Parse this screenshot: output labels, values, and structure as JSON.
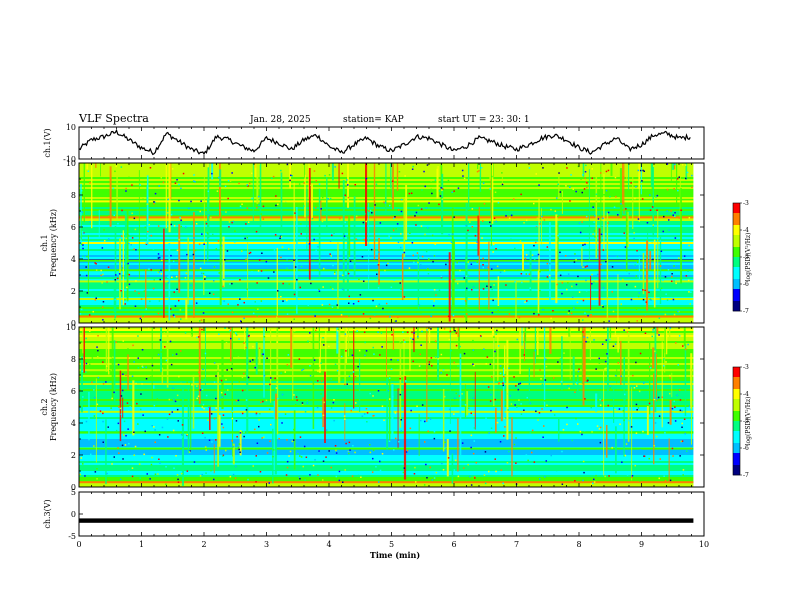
{
  "header": {
    "title": "VLF Spectra",
    "date": "Jan. 28, 2025",
    "station": "station= KAP",
    "start_time": "start  UT  =  23: 30: 1"
  },
  "chart_data": [
    {
      "type": "line",
      "panel": "ch1-waveform",
      "ylabel": "ch.1(V)",
      "ylim": [
        -10,
        10
      ],
      "yticks": [
        "10",
        "-10"
      ],
      "xlim": [
        0,
        10
      ],
      "series": [
        {
          "x": [
            0,
            0.2,
            0.4,
            0.6,
            0.8,
            1,
            1.2,
            1.4,
            1.6,
            1.8,
            2,
            2.2,
            2.4,
            2.6,
            2.8,
            3,
            3.2,
            3.4,
            3.6,
            3.8,
            4,
            4.2,
            4.4,
            4.6,
            4.8,
            5,
            5.2,
            5.4,
            5.6,
            5.8,
            6,
            6.2,
            6.4,
            6.6,
            6.8,
            7,
            7.2,
            7.4,
            7.6,
            7.8,
            8,
            8.2,
            8.4,
            8.6,
            8.8,
            9,
            9.2,
            9.4,
            9.6,
            9.8
          ],
          "y": [
            -4,
            2,
            4,
            7,
            2,
            -3,
            -6,
            6,
            1,
            -4,
            -7,
            4,
            2,
            -2,
            -5,
            3,
            0,
            -4,
            2,
            5,
            -2,
            -6,
            -1,
            3,
            -2,
            -5,
            -1,
            4,
            3,
            -1,
            -5,
            -2,
            3,
            1,
            -2,
            -4,
            -1,
            3,
            5,
            2,
            -3,
            -6,
            -1,
            3,
            -4,
            -1,
            5,
            6,
            3,
            4
          ]
        }
      ]
    },
    {
      "type": "heatmap",
      "panel": "ch1-spectrogram",
      "ylabel": [
        "ch.1",
        "Frequency (kHz)"
      ],
      "ylim": [
        0,
        10
      ],
      "yticks": [
        "0",
        "2",
        "4",
        "6",
        "8",
        "10"
      ],
      "xlim": [
        0,
        10
      ],
      "xmax_data": 9.83,
      "colorbar": {
        "label": "log(PSD)(V²/Hz)",
        "range": [
          -7,
          -3
        ],
        "ticks": [
          "-3",
          "-4",
          "-5",
          "-6",
          "-7"
        ]
      },
      "freq_profile_khz": [
        0,
        0.5,
        1,
        1.5,
        2,
        2.5,
        3,
        3.5,
        4,
        4.5,
        5,
        5.5,
        6,
        6.5,
        7,
        7.5,
        8,
        8.5,
        9,
        9.5,
        10
      ],
      "freq_profile_logpsd": [
        -4.2,
        -4.8,
        -5.2,
        -5.3,
        -5.4,
        -5.2,
        -5.8,
        -5.9,
        -6.0,
        -5.6,
        -5.6,
        -5.2,
        -5.4,
        -4.6,
        -5.2,
        -4.9,
        -4.6,
        -4.5,
        -4.5,
        -4.3,
        -4.2
      ],
      "line_features": [
        {
          "f_khz": 0.4,
          "level": -3.6
        },
        {
          "f_khz": 1.5,
          "level": -4.6
        },
        {
          "f_khz": 2.6,
          "level": -4.4
        },
        {
          "f_khz": 3.3,
          "level": -4.9
        },
        {
          "f_khz": 3.9,
          "level": -4.9
        },
        {
          "f_khz": 5.0,
          "level": -4.1
        },
        {
          "f_khz": 6.6,
          "level": -3.8
        },
        {
          "f_khz": 7.6,
          "level": -4.2
        }
      ]
    },
    {
      "type": "heatmap",
      "panel": "ch2-spectrogram",
      "ylabel": [
        "ch.2",
        "Frequency (kHz)"
      ],
      "ylim": [
        0,
        10
      ],
      "yticks": [
        "0",
        "2",
        "4",
        "6",
        "8",
        "10"
      ],
      "xlim": [
        0,
        10
      ],
      "xmax_data": 9.83,
      "colorbar": {
        "label": "log(PSD)(V²/Hz)",
        "range": [
          -7,
          -3
        ],
        "ticks": [
          "-3",
          "-4",
          "-5",
          "-6",
          "-7"
        ]
      },
      "freq_profile_khz": [
        0,
        0.5,
        1,
        1.5,
        2,
        2.5,
        3,
        3.5,
        4,
        4.5,
        5,
        5.5,
        6,
        6.5,
        7,
        7.5,
        8,
        8.5,
        9,
        9.5,
        10
      ],
      "freq_profile_logpsd": [
        -4.0,
        -5.0,
        -5.4,
        -5.6,
        -5.8,
        -5.8,
        -5.7,
        -5.5,
        -5.6,
        -5.3,
        -5.3,
        -5.2,
        -5.0,
        -4.8,
        -4.7,
        -4.7,
        -4.6,
        -4.5,
        -4.5,
        -4.4,
        -4.4
      ],
      "line_features": [
        {
          "f_khz": 0.3,
          "level": -3.7
        },
        {
          "f_khz": 2.4,
          "level": -4.9
        },
        {
          "f_khz": 3.4,
          "level": -5.0
        },
        {
          "f_khz": 4.7,
          "level": -4.4
        },
        {
          "f_khz": 7.3,
          "level": -4.3
        }
      ]
    },
    {
      "type": "line",
      "panel": "ch3-waveform",
      "ylabel": "ch.3(V)",
      "ylim": [
        -5,
        5
      ],
      "yticks": [
        "5",
        "0",
        "-5"
      ],
      "xlim": [
        0,
        10
      ],
      "xlabel": "Time (min)",
      "xticks": [
        "0",
        "1",
        "2",
        "3",
        "4",
        "5",
        "6",
        "7",
        "8",
        "9",
        "10"
      ],
      "series": [
        {
          "x": [
            0,
            9.83
          ],
          "y": [
            -1.5,
            -1.5
          ],
          "band_halfwidth": 0.5
        }
      ]
    }
  ],
  "colors": {
    "colormap": [
      "#000080",
      "#0000ff",
      "#00bfff",
      "#00ffff",
      "#00ff80",
      "#40ff00",
      "#c0ff00",
      "#ffff00",
      "#ff8000",
      "#ff0000"
    ]
  }
}
